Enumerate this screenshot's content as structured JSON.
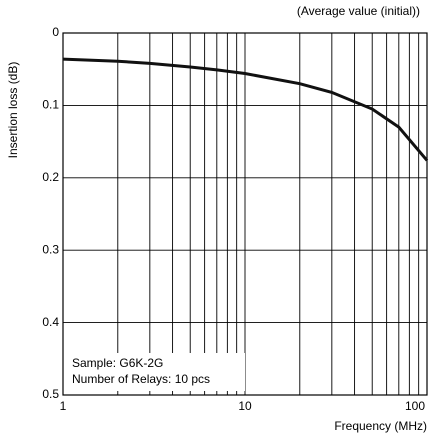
{
  "chart_data": {
    "type": "line",
    "subtitle": "(Average value (initial))",
    "y_label": "Insertion loss (dB)",
    "x_label": "Frequency (MHz)",
    "annotations": [
      "Sample: G6K-2G",
      "Number of Relays: 10 pcs"
    ],
    "x": [
      1,
      2,
      3,
      5,
      7,
      10,
      20,
      30,
      50,
      70,
      100
    ],
    "series": [
      {
        "name": "G6K-2G",
        "color": "#111111",
        "values": [
          0.036,
          0.039,
          0.042,
          0.047,
          0.051,
          0.056,
          0.07,
          0.082,
          0.105,
          0.13,
          0.176
        ]
      }
    ],
    "xlim": [
      1,
      100
    ],
    "xlog": true,
    "xticks": [
      1,
      10,
      100
    ],
    "xminor_ticks": [
      2,
      3,
      4,
      5,
      6,
      7,
      8,
      9,
      20,
      30,
      40,
      50,
      60,
      70,
      80,
      90
    ],
    "ylim": [
      0,
      0.5
    ],
    "y_inverted": true,
    "yticks": [
      0,
      0.1,
      0.2,
      0.3,
      0.4,
      0.5
    ],
    "grid": true
  }
}
